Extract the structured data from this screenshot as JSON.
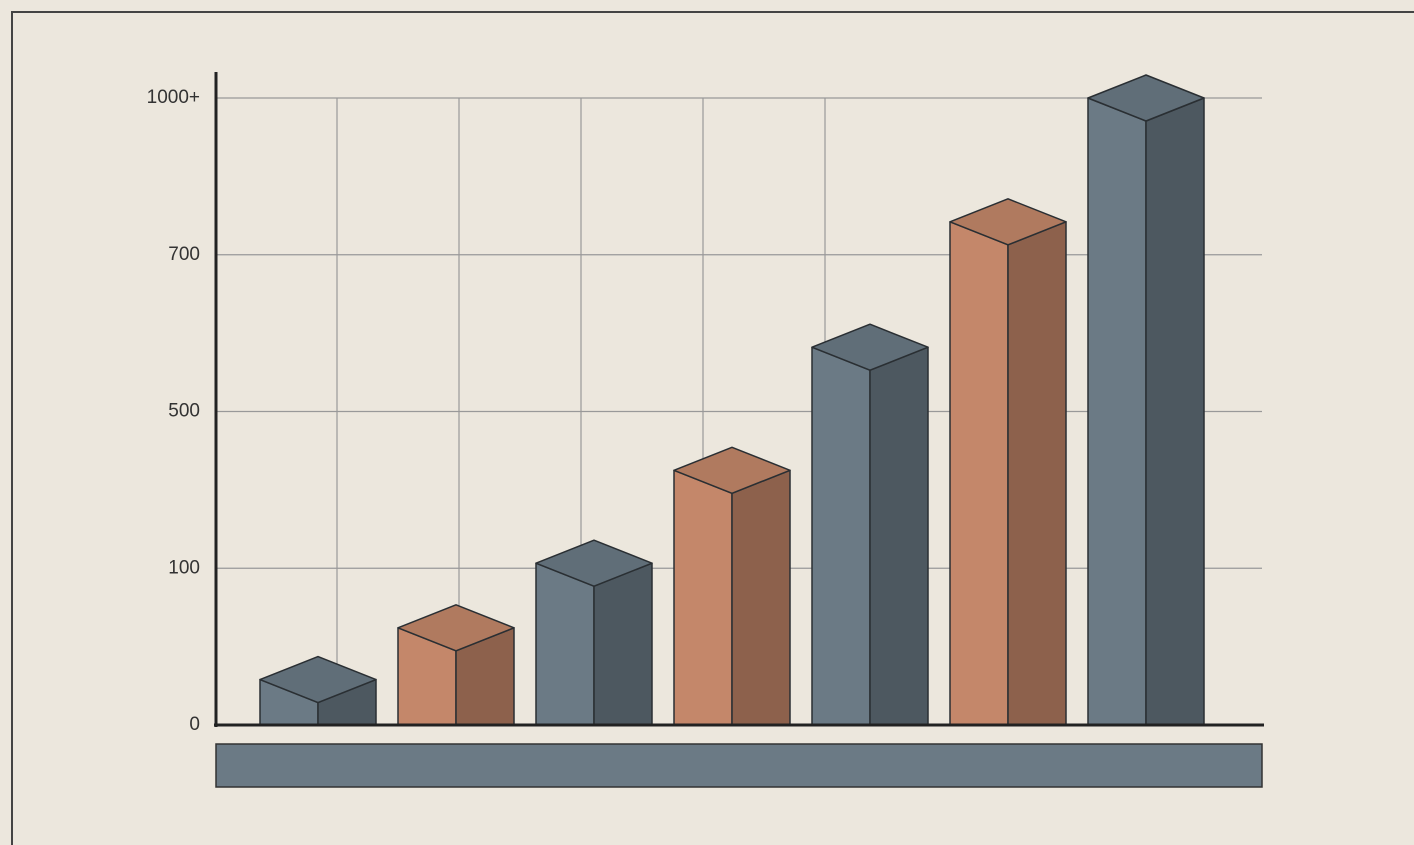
{
  "chart_data": {
    "type": "bar3d",
    "categories": [
      null,
      null,
      null,
      null,
      null,
      null,
      null
    ],
    "values": [
      29,
      62,
      113,
      350,
      582,
      763,
      1000
    ],
    "colors": [
      "#6b7a85",
      "#c4876a",
      "#6b7a85",
      "#c4876a",
      "#6b7a85",
      "#c4876a",
      "#6b7a85"
    ],
    "ylim": [
      0,
      1000
    ],
    "yticks": [
      0,
      100,
      500,
      700,
      {
        "value": 1000,
        "label": "1000+"
      }
    ],
    "grid": true
  }
}
